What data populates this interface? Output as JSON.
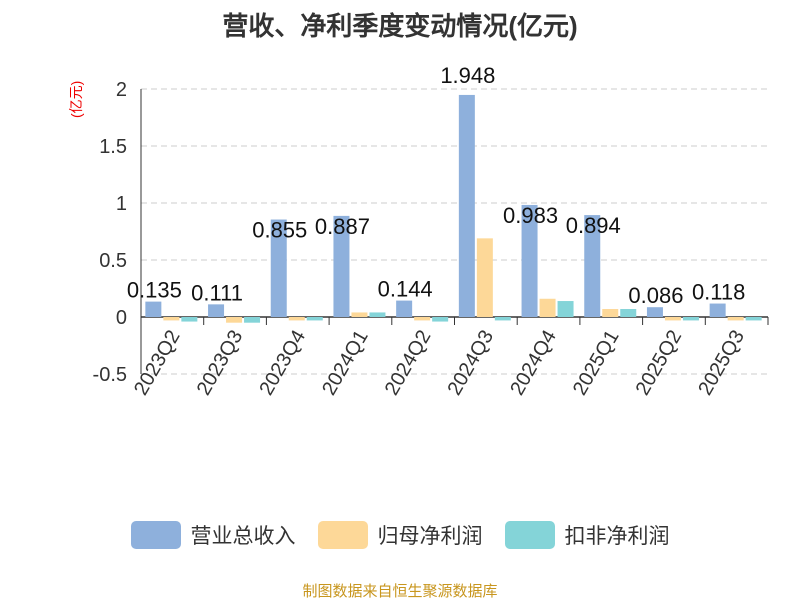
{
  "chart_data": {
    "type": "bar",
    "title": "营收、净利季度变动情况(亿元)",
    "ylabel": "(亿元)",
    "ylim": [
      -0.5,
      2
    ],
    "yticks": [
      "-0.5",
      "0",
      "0.5",
      "1",
      "1.5",
      "2"
    ],
    "yticks_values": [
      -0.5,
      0,
      0.5,
      1,
      1.5,
      2
    ],
    "grid": true,
    "legend_position": "bottom",
    "categories": [
      "2023Q2",
      "2023Q3",
      "2023Q4",
      "2024Q1",
      "2024Q2",
      "2024Q3",
      "2024Q4",
      "2025Q1",
      "2025Q2",
      "2025Q3"
    ],
    "series": [
      {
        "name": "营业总收入",
        "color": "#8eb0dc",
        "values": [
          0.135,
          0.111,
          0.855,
          0.887,
          0.144,
          1.948,
          0.983,
          0.894,
          0.086,
          0.118
        ],
        "labels": [
          "0.135",
          "0.111",
          "0.855",
          "0.887",
          "0.144",
          "1.948",
          "0.983",
          "0.894",
          "0.086",
          "0.118"
        ]
      },
      {
        "name": "归母净利润",
        "color": "#fdd898",
        "values": [
          -0.03,
          -0.05,
          -0.03,
          0.04,
          -0.03,
          0.69,
          0.16,
          0.07,
          -0.03,
          -0.03
        ]
      },
      {
        "name": "扣非净利润",
        "color": "#84d4d8",
        "values": [
          -0.04,
          -0.05,
          -0.03,
          0.04,
          -0.04,
          -0.03,
          0.14,
          0.07,
          -0.03,
          -0.03
        ]
      }
    ]
  },
  "source": "制图数据来自恒生聚源数据库"
}
